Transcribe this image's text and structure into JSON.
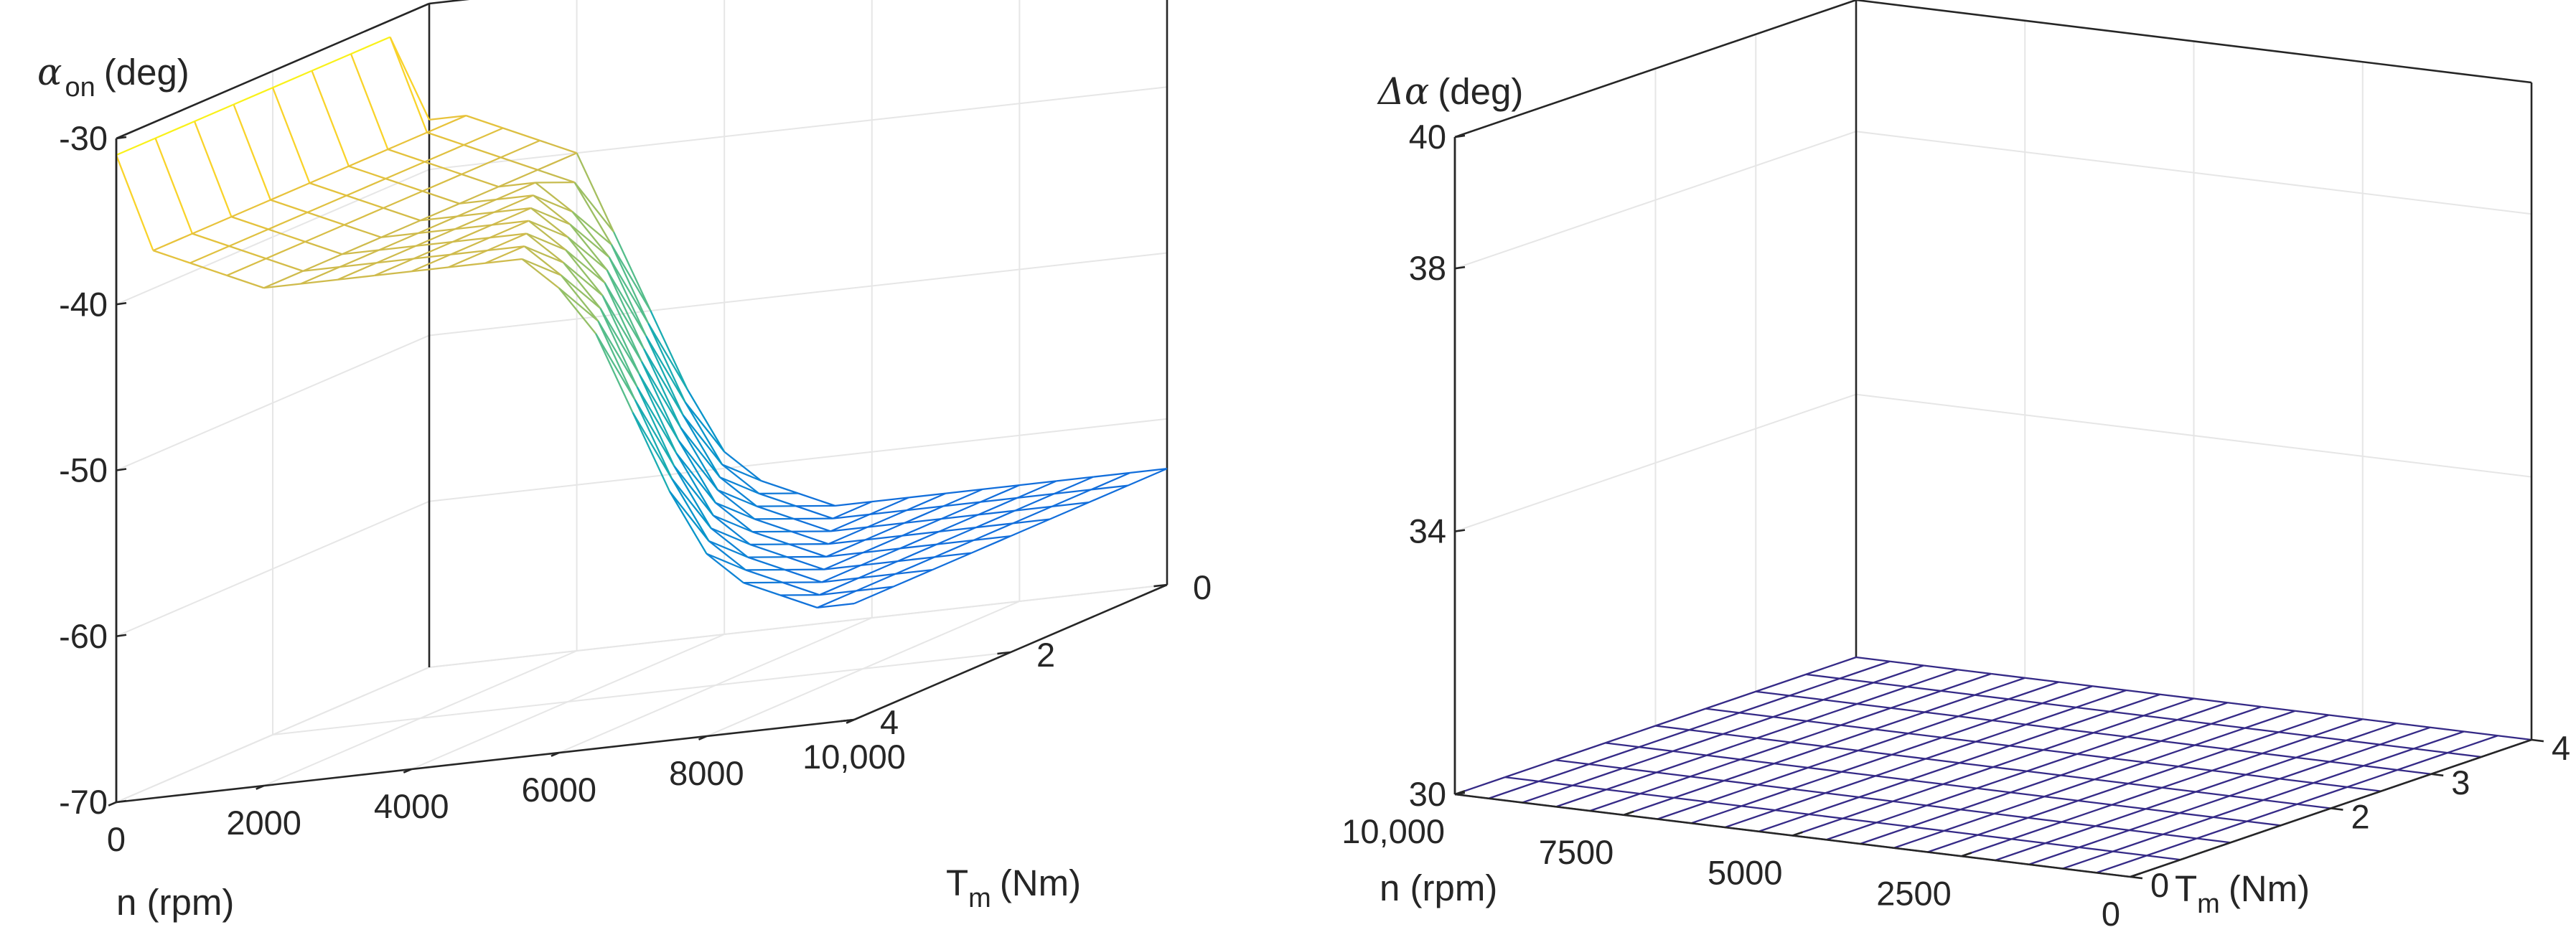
{
  "chart_data": [
    {
      "type": "surface-mesh",
      "z_label": {
        "symbol": "α",
        "subscript": "on",
        "unit": "(deg)"
      },
      "x_label": "n (rpm)",
      "y_label": {
        "symbol": "T",
        "subscript": "m",
        "unit": "(Nm)"
      },
      "xlim": [
        0,
        10000
      ],
      "ylim": [
        0,
        4
      ],
      "zlim": [
        -70,
        -30
      ],
      "x_ticks": [
        0,
        2000,
        4000,
        6000,
        8000,
        10000
      ],
      "x_tick_labels": [
        "0",
        "2000",
        "4000",
        "6000",
        "8000",
        "10,000"
      ],
      "y_ticks": [
        0,
        2,
        4
      ],
      "y_tick_labels": [
        "0",
        "2",
        "4"
      ],
      "z_ticks": [
        -70,
        -60,
        -50,
        -40,
        -30
      ],
      "z_tick_labels": [
        "-70",
        "-60",
        "-50",
        "-40",
        "-30"
      ],
      "n_grid": [
        0,
        500,
        1000,
        1500,
        2000,
        2500,
        3000,
        3500,
        4000,
        4500,
        5000,
        5500,
        6000,
        6500,
        7000,
        7500,
        8000,
        8500,
        9000,
        9500,
        10000
      ],
      "T_grid": [
        0,
        0.5,
        1,
        1.5,
        2,
        2.5,
        3,
        3.5,
        4
      ],
      "z_values": [
        [
          -37,
          -31,
          -31,
          -31,
          -31,
          -31,
          -31,
          -31,
          -31
        ],
        [
          -37,
          -37,
          -37,
          -37,
          -37,
          -37,
          -37,
          -37,
          -37
        ],
        [
          -38,
          -38,
          -38,
          -38,
          -38,
          -38,
          -38,
          -38,
          -38
        ],
        [
          -39,
          -39,
          -39,
          -39,
          -39,
          -39,
          -39,
          -39,
          -39
        ],
        [
          -40,
          -40,
          -40,
          -40,
          -40,
          -40,
          -40,
          -40,
          -40
        ],
        [
          -45,
          -41,
          -40,
          -40,
          -40,
          -40,
          -40,
          -40,
          -40
        ],
        [
          -50,
          -45,
          -42,
          -40,
          -40,
          -40,
          -40,
          -40,
          -40
        ],
        [
          -55,
          -50,
          -45,
          -42,
          -40,
          -40,
          -40,
          -40,
          -40
        ],
        [
          -59,
          -55,
          -50,
          -45,
          -42,
          -40,
          -40,
          -40,
          -40
        ],
        [
          -61,
          -59,
          -55,
          -50,
          -45,
          -42,
          -40,
          -40,
          -40
        ],
        [
          -62,
          -61,
          -59,
          -55,
          -50,
          -45,
          -42,
          -40,
          -40
        ],
        [
          -63,
          -62,
          -61,
          -59,
          -55,
          -50,
          -45,
          -42,
          -40
        ],
        [
          -63,
          -63,
          -62,
          -61,
          -59,
          -55,
          -50,
          -45,
          -42
        ],
        [
          -63,
          -63,
          -63,
          -62,
          -61,
          -59,
          -55,
          -50,
          -45
        ],
        [
          -63,
          -63,
          -63,
          -63,
          -62,
          -61,
          -59,
          -55,
          -50
        ],
        [
          -63,
          -63,
          -63,
          -63,
          -63,
          -62,
          -61,
          -59,
          -55
        ],
        [
          -63,
          -63,
          -63,
          -63,
          -63,
          -63,
          -62,
          -61,
          -59
        ],
        [
          -63,
          -63,
          -63,
          -63,
          -63,
          -63,
          -63,
          -62,
          -61
        ],
        [
          -63,
          -63,
          -63,
          -63,
          -63,
          -63,
          -63,
          -63,
          -62
        ],
        [
          -63,
          -63,
          -63,
          -63,
          -63,
          -63,
          -63,
          -63,
          -63
        ],
        [
          -63,
          -63,
          -63,
          -63,
          -63,
          -63,
          -63,
          -63,
          -63
        ]
      ]
    },
    {
      "type": "surface-mesh",
      "z_label": {
        "symbol": "Δα",
        "unit": "(deg)"
      },
      "x_label": "n (rpm)",
      "y_label": {
        "symbol": "T",
        "subscript": "m",
        "unit": "(Nm)"
      },
      "xlim": [
        0,
        10000
      ],
      "ylim": [
        0,
        4
      ],
      "zlim": [
        30,
        40
      ],
      "x_ticks": [
        10000,
        7500,
        5000,
        2500,
        0
      ],
      "x_tick_labels": [
        "10,000",
        "7500",
        "5000",
        "2500",
        "0"
      ],
      "y_ticks": [
        0,
        2,
        3,
        4
      ],
      "y_tick_labels": [
        "0",
        "2",
        "3",
        "4"
      ],
      "z_ticks": [
        30,
        34,
        38,
        40
      ],
      "z_tick_labels": [
        "30",
        "34",
        "38",
        "40"
      ],
      "n_grid": [
        0,
        500,
        1000,
        1500,
        2000,
        2500,
        3000,
        3500,
        4000,
        4500,
        5000,
        5500,
        6000,
        6500,
        7000,
        7500,
        8000,
        8500,
        9000,
        9500,
        10000
      ],
      "T_grid": [
        0,
        0.5,
        1,
        1.5,
        2,
        2.5,
        3,
        3.5,
        4
      ],
      "z_values": [
        [
          30,
          30,
          30,
          30,
          30,
          30,
          30,
          30,
          30
        ],
        [
          30,
          30,
          30,
          30,
          30,
          30,
          30,
          30,
          30
        ],
        [
          30,
          30,
          30,
          30,
          30,
          30,
          30,
          30,
          30
        ],
        [
          30,
          30,
          30,
          30,
          30,
          30,
          30,
          30,
          30
        ],
        [
          30,
          30,
          30,
          30,
          30,
          30,
          30,
          30,
          30
        ],
        [
          30,
          30,
          30,
          30,
          30,
          30,
          30,
          30,
          30
        ],
        [
          30,
          30,
          30,
          30,
          30,
          30,
          30,
          30,
          30
        ],
        [
          30,
          30,
          30,
          30,
          30,
          30,
          30,
          30,
          30
        ],
        [
          30,
          30,
          30,
          30,
          30,
          30,
          30,
          30,
          30
        ],
        [
          30,
          30,
          30,
          30,
          30,
          30,
          30,
          30,
          30
        ],
        [
          30,
          30,
          30,
          30,
          30,
          30,
          30,
          30,
          30
        ],
        [
          30,
          30,
          30,
          30,
          30,
          30,
          30,
          30,
          30
        ],
        [
          30,
          30,
          30,
          30,
          30,
          30,
          30,
          30,
          30
        ],
        [
          30,
          30,
          30,
          30,
          30,
          30,
          30,
          30,
          30
        ],
        [
          30,
          30,
          30,
          30,
          30,
          30,
          30,
          30,
          30
        ],
        [
          30,
          30,
          30,
          30,
          30,
          30,
          30,
          30,
          30
        ],
        [
          30,
          30,
          30,
          30,
          30,
          30,
          30,
          30,
          30
        ],
        [
          30,
          30,
          30,
          30,
          30,
          30,
          30,
          30,
          30
        ],
        [
          30,
          30,
          30,
          30,
          30,
          30,
          30,
          30,
          30
        ],
        [
          30,
          30,
          30,
          30,
          30,
          30,
          30,
          30,
          30
        ],
        [
          30,
          30,
          30,
          30,
          30,
          30,
          30,
          30,
          30
        ]
      ]
    }
  ]
}
